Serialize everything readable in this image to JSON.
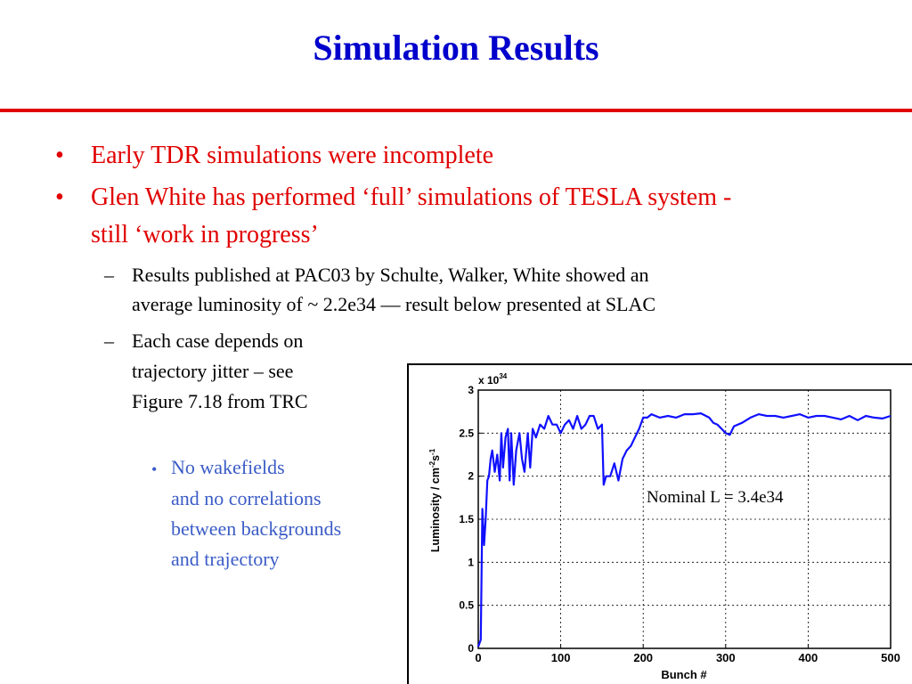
{
  "slide": {
    "title": "Simulation Results",
    "bullets": [
      "Early TDR simulations were incomplete",
      "Glen White has performed ‘full’ simulations of TESLA system -",
      "still ‘work in progress’"
    ],
    "sub_bullets": [
      "Results published at PAC03 by Schulte, Walker, White showed an",
      "average luminosity of ~ 2.2e34 — result below presented at SLAC",
      "Each case depends on",
      "trajectory jitter – see",
      "Figure 7.18 from TRC"
    ],
    "sub_sub_bullet": [
      "No wakefields",
      "and no correlations",
      "between backgrounds",
      "and trajectory"
    ],
    "bullet_symbol": "•",
    "dash_symbol": "–",
    "colors": {
      "title": "#0000cc",
      "rule": "#e00000",
      "bullet_l1": "#e00000",
      "bullet_l3": "#3b5cc6",
      "series": "#1010ff"
    }
  },
  "chart_data": {
    "type": "line",
    "xlabel": "Bunch #",
    "ylabel": "Luminosity / cm",
    "ylabel_sup1": "-2",
    "ylabel_mid": "s",
    "ylabel_sup2": "-1",
    "y_multiplier": "x 10",
    "y_multiplier_exp": "34",
    "xlim": [
      0,
      500
    ],
    "ylim": [
      0,
      3
    ],
    "x_ticks": [
      0,
      100,
      200,
      300,
      400,
      500
    ],
    "y_ticks": [
      0,
      0.5,
      1,
      1.5,
      2,
      2.5,
      3
    ],
    "grid": true,
    "annotation": "Nominal L = 3.4e34",
    "series": [
      {
        "color": "#1010ff",
        "x": [
          0,
          3,
          5,
          7,
          9,
          11,
          13,
          15,
          17,
          20,
          23,
          26,
          28,
          30,
          33,
          36,
          38,
          40,
          43,
          46,
          50,
          53,
          56,
          60,
          63,
          66,
          70,
          75,
          80,
          85,
          90,
          95,
          100,
          105,
          110,
          115,
          120,
          125,
          130,
          135,
          140,
          145,
          150,
          152,
          155,
          160,
          165,
          170,
          175,
          180,
          185,
          190,
          195,
          200,
          205,
          210,
          220,
          230,
          240,
          250,
          260,
          270,
          280,
          285,
          290,
          295,
          300,
          305,
          310,
          320,
          330,
          340,
          350,
          360,
          370,
          380,
          390,
          400,
          410,
          420,
          430,
          440,
          450,
          460,
          470,
          480,
          490,
          500
        ],
        "y": [
          0.02,
          0.1,
          1.62,
          1.2,
          1.5,
          1.95,
          2.0,
          2.2,
          2.3,
          2.05,
          2.25,
          1.95,
          2.5,
          2.1,
          2.45,
          2.55,
          1.95,
          2.5,
          1.9,
          2.3,
          2.5,
          2.2,
          2.05,
          2.5,
          2.1,
          2.55,
          2.45,
          2.6,
          2.55,
          2.7,
          2.6,
          2.6,
          2.5,
          2.6,
          2.65,
          2.55,
          2.7,
          2.55,
          2.6,
          2.7,
          2.7,
          2.55,
          2.6,
          1.9,
          2.0,
          2.0,
          2.15,
          1.95,
          2.2,
          2.3,
          2.35,
          2.45,
          2.55,
          2.68,
          2.68,
          2.72,
          2.68,
          2.7,
          2.68,
          2.72,
          2.72,
          2.73,
          2.68,
          2.62,
          2.6,
          2.55,
          2.5,
          2.48,
          2.58,
          2.62,
          2.68,
          2.72,
          2.7,
          2.7,
          2.68,
          2.7,
          2.72,
          2.68,
          2.7,
          2.7,
          2.68,
          2.66,
          2.7,
          2.65,
          2.7,
          2.68,
          2.67,
          2.7
        ]
      }
    ]
  }
}
